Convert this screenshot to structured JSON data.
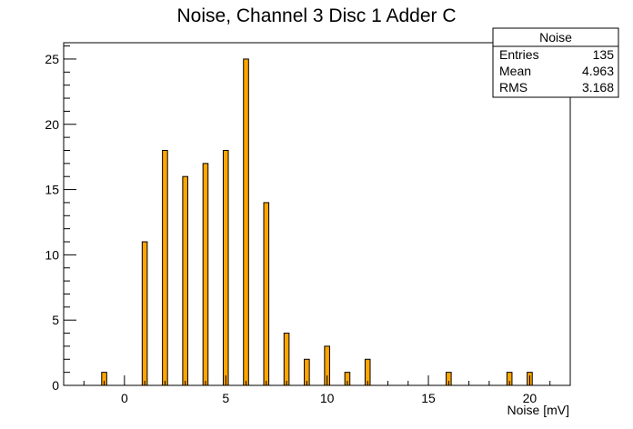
{
  "chart_data": {
    "type": "bar",
    "title": "Noise, Channel 3 Disc 1 Adder C",
    "xlabel": "Noise [mV]",
    "ylabel": "",
    "xlim": [
      -3,
      22
    ],
    "ylim": [
      0,
      26.25
    ],
    "bin_width": 0.25,
    "x_ticks": [
      0,
      5,
      10,
      15,
      20
    ],
    "y_ticks": [
      0,
      5,
      10,
      15,
      20,
      25
    ],
    "points": [
      {
        "x": -1,
        "y": 1
      },
      {
        "x": 1,
        "y": 11
      },
      {
        "x": 2,
        "y": 18
      },
      {
        "x": 3,
        "y": 16
      },
      {
        "x": 4,
        "y": 17
      },
      {
        "x": 5,
        "y": 18
      },
      {
        "x": 6,
        "y": 25
      },
      {
        "x": 7,
        "y": 14
      },
      {
        "x": 8,
        "y": 4
      },
      {
        "x": 9,
        "y": 2
      },
      {
        "x": 10,
        "y": 3
      },
      {
        "x": 11,
        "y": 1
      },
      {
        "x": 12,
        "y": 2
      },
      {
        "x": 16,
        "y": 1
      },
      {
        "x": 19,
        "y": 1
      },
      {
        "x": 20,
        "y": 1
      }
    ],
    "bar_color": "#ffa500",
    "stats": {
      "title": "Noise",
      "rows": [
        {
          "label": "Entries",
          "value": "135"
        },
        {
          "label": "Mean",
          "value": "4.963"
        },
        {
          "label": "RMS",
          "value": "3.168"
        }
      ]
    }
  }
}
